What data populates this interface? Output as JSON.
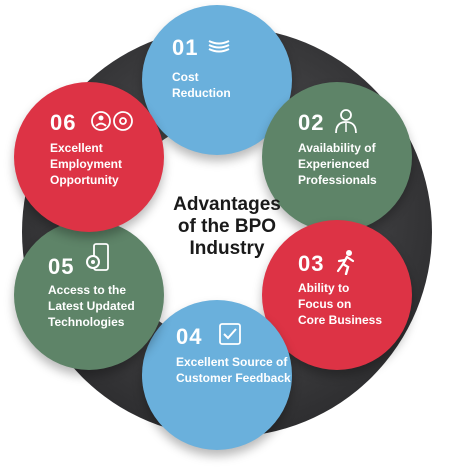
{
  "center": {
    "title": "Advantages\nof the BPO\nIndustry"
  },
  "items": [
    {
      "number": "01",
      "label": "Cost\nReduction",
      "icon": "money-stack-icon"
    },
    {
      "number": "02",
      "label": "Availability of\nExperienced\nProfessionals",
      "icon": "professional-person-icon"
    },
    {
      "number": "03",
      "label": "Ability to\nFocus on\nCore Business",
      "icon": "running-person-icon"
    },
    {
      "number": "04",
      "label": "Excellent Source of\nCustomer Feedback",
      "icon": "checkbox-icon"
    },
    {
      "number": "05",
      "label": "Access to the\nLatest Updated\nTechnologies",
      "icon": "mobile-gear-icon"
    },
    {
      "number": "06",
      "label": "Excellent\nEmployment\nOpportunity",
      "icon": "people-settings-icon"
    }
  ],
  "colors": {
    "blue": "#6ab0dc",
    "green": "#5e8468",
    "red": "#dd3345",
    "ring": "#3a3a3c"
  }
}
